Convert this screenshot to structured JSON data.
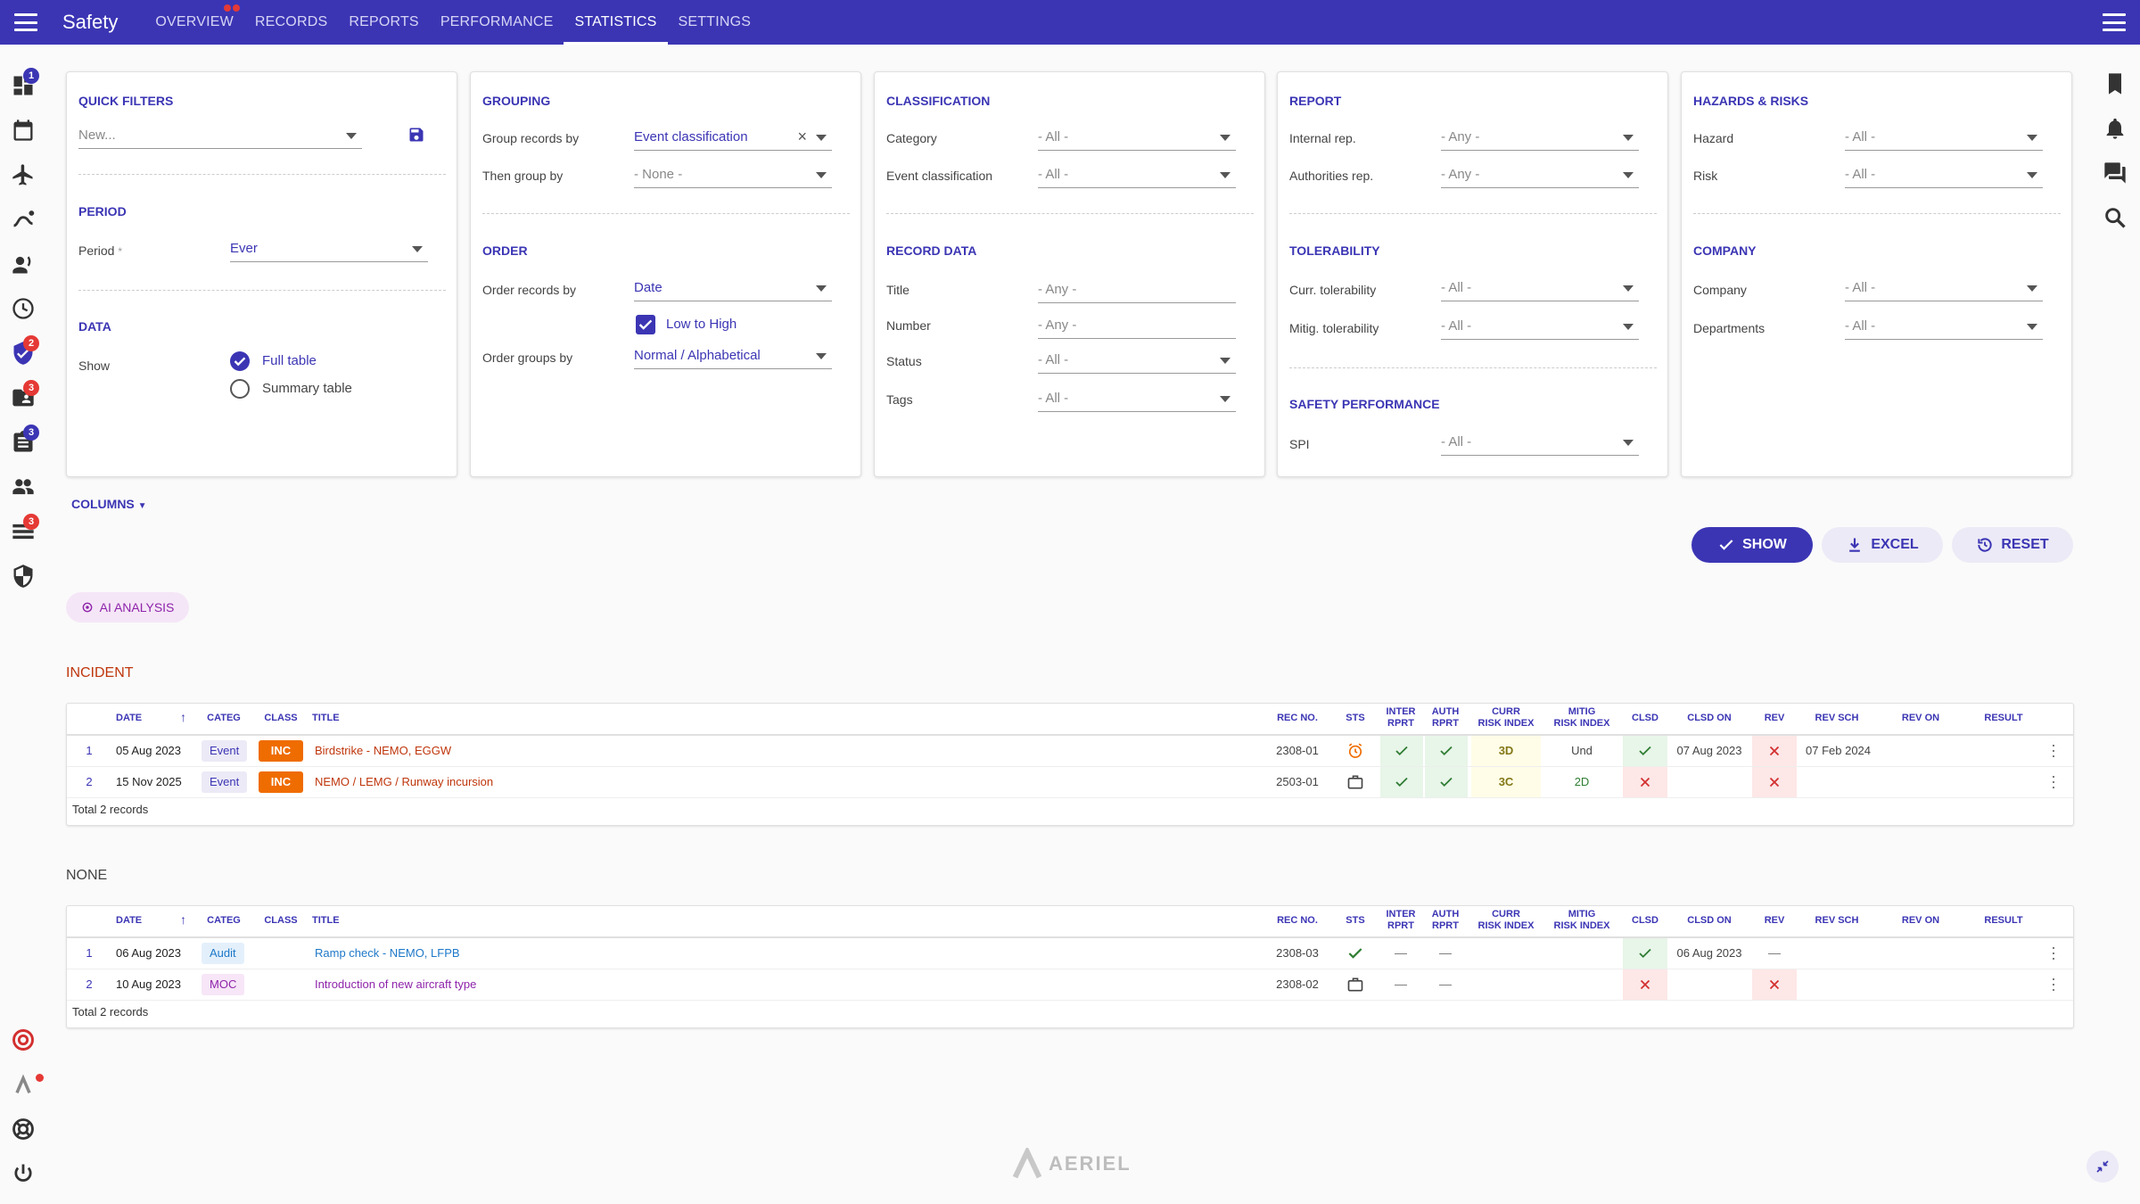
{
  "app": {
    "title": "Safety"
  },
  "nav": {
    "tabs": [
      "OVERVIEW",
      "RECORDS",
      "REPORTS",
      "PERFORMANCE",
      "STATISTICS",
      "SETTINGS"
    ],
    "active": "STATISTICS"
  },
  "sidebar_badges": {
    "dashboard": "1",
    "safety": "2",
    "folder": "3",
    "clipboard": "3",
    "list": "3"
  },
  "quick_filters": {
    "title": "QUICK FILTERS",
    "placeholder": "New..."
  },
  "period": {
    "title": "PERIOD",
    "label": "Period",
    "required": "*",
    "value": "Ever"
  },
  "data": {
    "title": "DATA",
    "label": "Show",
    "opt1": "Full table",
    "opt2": "Summary table"
  },
  "grouping": {
    "title": "GROUPING",
    "group_label": "Group records by",
    "group_value": "Event classification",
    "then_label": "Then group by",
    "then_value": "- None -"
  },
  "order": {
    "title": "ORDER",
    "order_label": "Order records by",
    "order_value": "Date",
    "low_high": "Low to High",
    "groups_label": "Order groups by",
    "groups_value": "Normal / Alphabetical"
  },
  "classification": {
    "title": "CLASSIFICATION",
    "category_label": "Category",
    "category_value": "- All -",
    "event_label": "Event classification",
    "event_value": "- All -"
  },
  "record_data": {
    "title": "RECORD DATA",
    "title_label": "Title",
    "title_ph": "- Any -",
    "number_label": "Number",
    "number_ph": "- Any -",
    "status_label": "Status",
    "status_value": "- All -",
    "tags_label": "Tags",
    "tags_value": "- All -"
  },
  "report": {
    "title": "REPORT",
    "internal_label": "Internal rep.",
    "internal_value": "- Any -",
    "authorities_label": "Authorities rep.",
    "authorities_value": "- Any -"
  },
  "tolerability": {
    "title": "TOLERABILITY",
    "curr_label": "Curr. tolerability",
    "curr_value": "- All -",
    "mitig_label": "Mitig. tolerability",
    "mitig_value": "- All -"
  },
  "safety_performance": {
    "title": "SAFETY PERFORMANCE",
    "spi_label": "SPI",
    "spi_value": "- All -"
  },
  "hazards": {
    "title": "HAZARDS & RISKS",
    "hazard_label": "Hazard",
    "hazard_value": "- All -",
    "risk_label": "Risk",
    "risk_value": "- All -"
  },
  "company": {
    "title": "COMPANY",
    "company_label": "Company",
    "company_value": "- All -",
    "dept_label": "Departments",
    "dept_value": "- All -"
  },
  "columns": {
    "label": "COLUMNS"
  },
  "buttons": {
    "show": "SHOW",
    "excel": "EXCEL",
    "reset": "RESET",
    "ai": "AI ANALYSIS"
  },
  "columns_headers": {
    "date": "DATE",
    "categ": "CATEG",
    "class": "CLASS",
    "title": "TITLE",
    "rec_no": "REC NO.",
    "sts": "STS",
    "inter1": "INTER",
    "inter2": "RPRT",
    "auth1": "AUTH",
    "auth2": "RPRT",
    "curr1": "CURR",
    "curr2": "RISK INDEX",
    "mitig1": "MITIG",
    "mitig2": "RISK INDEX",
    "clsd": "CLSD",
    "clsd_on": "CLSD ON",
    "rev": "REV",
    "rev_sch": "REV SCH",
    "rev_on": "REV ON",
    "result": "RESULT"
  },
  "groups": [
    {
      "name": "INCIDENT",
      "total": "Total 2 records",
      "rows": [
        {
          "n": "1",
          "date": "05 Aug 2023",
          "categ": "Event",
          "class": "INC",
          "title": "Birdstrike - NEMO, EGGW",
          "rec_no": "2308-01",
          "curr": "3D",
          "mitig": "Und",
          "clsd_on": "07 Aug 2023",
          "rev_sch": "07 Feb 2024"
        },
        {
          "n": "2",
          "date": "15 Nov 2025",
          "categ": "Event",
          "class": "INC",
          "title": "NEMO / LEMG / Runway incursion",
          "rec_no": "2503-01",
          "curr": "3C",
          "mitig": "2D",
          "clsd_on": "",
          "rev_sch": ""
        }
      ]
    },
    {
      "name": "NONE",
      "total": "Total 2 records",
      "rows": [
        {
          "n": "1",
          "date": "06 Aug 2023",
          "categ": "Audit",
          "class": "",
          "title": "Ramp check - NEMO, LFPB",
          "rec_no": "2308-03",
          "clsd_on": "06 Aug 2023"
        },
        {
          "n": "2",
          "date": "10 Aug 2023",
          "categ": "MOC",
          "class": "",
          "title": "Introduction of new aircraft type",
          "rec_no": "2308-02",
          "clsd_on": ""
        }
      ]
    }
  ],
  "footer": {
    "brand": "AERIEL"
  },
  "colors": {
    "primary": "#3b35b4",
    "orange": "#ef6c00",
    "green_bg": "#e8f5e9",
    "red_bg": "#fde7e7"
  }
}
